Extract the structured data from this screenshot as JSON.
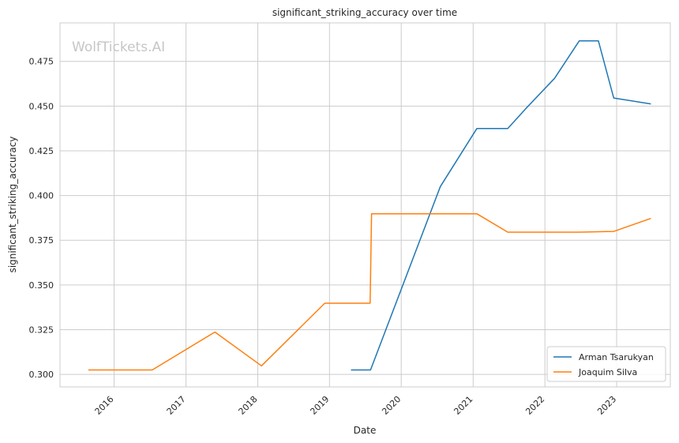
{
  "watermark": "WolfTickets.AI",
  "chart_data": {
    "type": "line",
    "title": "significant_striking_accuracy over time",
    "xlabel": "Date",
    "ylabel": "significant_striking_accuracy",
    "x_ticks": [
      "2016",
      "2017",
      "2018",
      "2019",
      "2020",
      "2021",
      "2022",
      "2023"
    ],
    "y_ticks": [
      "0.300",
      "0.325",
      "0.350",
      "0.375",
      "0.400",
      "0.425",
      "0.450",
      "0.475"
    ],
    "xlim": [
      "2015-04-01",
      "2023-10-01"
    ],
    "ylim": [
      0.293,
      0.4965
    ],
    "grid": true,
    "legend_position": "bottom-right",
    "series": [
      {
        "name": "Arman Tsarukyan",
        "color": "#1f77b4",
        "points": [
          {
            "date": "2019-04-20",
            "value": 0.3025
          },
          {
            "date": "2019-07-29",
            "value": 0.3025
          },
          {
            "date": "2020-07-18",
            "value": 0.405
          },
          {
            "date": "2021-01-20",
            "value": 0.4375
          },
          {
            "date": "2021-06-26",
            "value": 0.4375
          },
          {
            "date": "2021-09-25",
            "value": 0.4485
          },
          {
            "date": "2022-02-19",
            "value": 0.4655
          },
          {
            "date": "2022-06-25",
            "value": 0.4865
          },
          {
            "date": "2022-09-30",
            "value": 0.4865
          },
          {
            "date": "2022-12-17",
            "value": 0.4545
          },
          {
            "date": "2023-06-24",
            "value": 0.4512
          }
        ]
      },
      {
        "name": "Joaquim Silva",
        "color": "#ff7f0e",
        "points": [
          {
            "date": "2015-08-23",
            "value": 0.3025
          },
          {
            "date": "2016-07-13",
            "value": 0.3025
          },
          {
            "date": "2017-05-28",
            "value": 0.3237
          },
          {
            "date": "2018-01-20",
            "value": 0.3048
          },
          {
            "date": "2018-12-08",
            "value": 0.3398
          },
          {
            "date": "2019-07-27",
            "value": 0.3398
          },
          {
            "date": "2019-08-03",
            "value": 0.3898
          },
          {
            "date": "2021-01-20",
            "value": 0.3898
          },
          {
            "date": "2021-06-26",
            "value": 0.3795
          },
          {
            "date": "2022-06-25",
            "value": 0.3795
          },
          {
            "date": "2022-12-17",
            "value": 0.3799
          },
          {
            "date": "2023-06-24",
            "value": 0.3872
          }
        ]
      }
    ]
  }
}
